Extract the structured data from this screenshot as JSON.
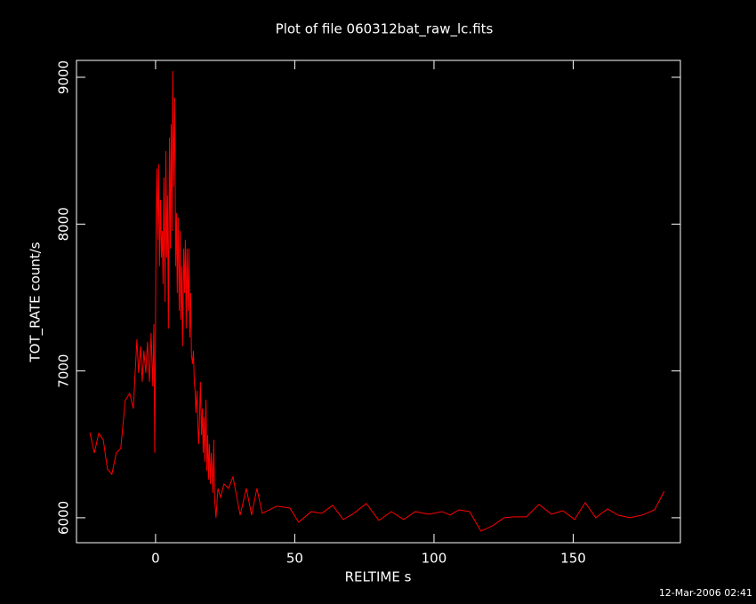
{
  "chart_data": {
    "type": "line",
    "title": "Plot of file 060312bat_raw_lc.fits",
    "x_label": "RELTIME  s",
    "y_label": "TOT_RATE  count/s",
    "annotation": "12-Mar-2006 02:41",
    "color": "#ff0000",
    "xlim": [
      -28.4,
      188.5
    ],
    "ylim": [
      5830,
      9115
    ],
    "xticks": [
      0,
      50,
      100,
      150
    ],
    "yticks": [
      6000,
      7000,
      8000,
      9000
    ],
    "x": [
      -23.6,
      -22.0,
      -20.4,
      -18.8,
      -17.3,
      -15.7,
      -14.1,
      -12.5,
      -10.9,
      -9.3,
      -8.0,
      -6.7,
      -6.1,
      -5.4,
      -4.8,
      -4.2,
      -3.5,
      -2.9,
      -2.2,
      -1.6,
      -1.0,
      -0.6,
      -0.3,
      0.2,
      0.5,
      0.8,
      1.1,
      1.4,
      1.8,
      2.1,
      2.4,
      2.7,
      3.0,
      3.4,
      3.7,
      4.0,
      4.3,
      4.6,
      5.0,
      5.3,
      5.6,
      5.9,
      6.2,
      6.5,
      6.9,
      7.2,
      7.5,
      7.8,
      8.1,
      8.5,
      8.8,
      9.1,
      9.4,
      9.7,
      10.1,
      10.4,
      10.7,
      11.0,
      11.3,
      11.7,
      12.0,
      12.3,
      12.6,
      12.9,
      13.3,
      13.6,
      13.9,
      14.2,
      14.5,
      14.9,
      15.2,
      15.5,
      15.8,
      16.1,
      16.5,
      16.8,
      17.1,
      17.4,
      17.7,
      18.1,
      18.4,
      18.7,
      19.0,
      19.3,
      19.7,
      20.0,
      20.3,
      20.6,
      20.9,
      21.2,
      21.7,
      22.4,
      23.3,
      24.6,
      26.2,
      27.8,
      30.4,
      32.6,
      34.5,
      36.4,
      38.3,
      40.9,
      43.5,
      48.2,
      51.4,
      55.9,
      59.7,
      63.6,
      67.4,
      71.2,
      75.7,
      80.2,
      84.7,
      89.1,
      93.3,
      98.1,
      102.9,
      105.8,
      108.9,
      112.8,
      116.9,
      121.1,
      125.2,
      128.8,
      133.2,
      137.7,
      142.2,
      146.3,
      150.5,
      154.3,
      158.1,
      162.3,
      166.1,
      170.3,
      174.8,
      179.2,
      182.7
    ],
    "values": [
      6581,
      6442,
      6575,
      6532,
      6333,
      6296,
      6442,
      6472,
      6799,
      6847,
      6744,
      7216,
      6986,
      7168,
      6926,
      7137,
      6986,
      7198,
      6926,
      7258,
      6895,
      7319,
      6442,
      8014,
      8378,
      7894,
      8408,
      7712,
      8166,
      7773,
      7954,
      7591,
      8317,
      7470,
      8499,
      7773,
      8196,
      7289,
      8589,
      7833,
      8680,
      7954,
      9043,
      8257,
      8862,
      7712,
      8075,
      7531,
      8045,
      7410,
      7954,
      7349,
      7712,
      7168,
      7833,
      7531,
      7894,
      7289,
      7833,
      7410,
      7833,
      7228,
      7531,
      7107,
      7047,
      7137,
      6926,
      6865,
      6714,
      6865,
      6623,
      6502,
      6684,
      6926,
      6563,
      6744,
      6442,
      6684,
      6381,
      6805,
      6321,
      6563,
      6260,
      6502,
      6230,
      6442,
      6321,
      6169,
      6532,
      6139,
      6000,
      6200,
      6139,
      6230,
      6200,
      6278,
      6018,
      6200,
      6018,
      6200,
      6030,
      6054,
      6079,
      6067,
      5970,
      6042,
      6030,
      6085,
      5988,
      6030,
      6097,
      5982,
      6042,
      5988,
      6042,
      6024,
      6042,
      6018,
      6054,
      6042,
      5909,
      5946,
      6000,
      6006,
      6006,
      6091,
      6024,
      6048,
      5988,
      6103,
      6000,
      6060,
      6018,
      6000,
      6018,
      6054,
      6181
    ]
  }
}
